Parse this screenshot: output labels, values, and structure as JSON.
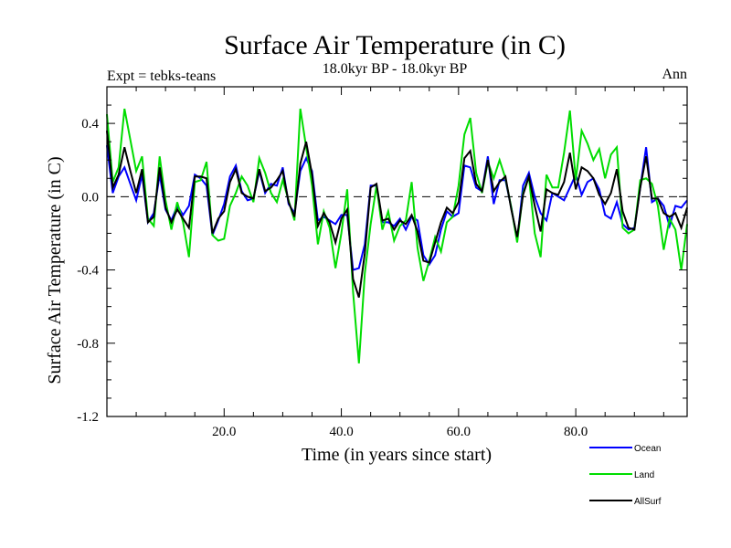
{
  "chart_data": {
    "type": "line",
    "title": "Surface Air Temperature (in C)",
    "subtitle": "18.0kyr BP - 18.0kyr BP",
    "left_note": "Expt = tebks-teans",
    "right_note": "Ann",
    "xlabel": "Time (in years since start)",
    "ylabel": "Surface Air Temperature (in C)",
    "xlim": [
      0,
      99
    ],
    "ylim": [
      -1.2,
      0.6
    ],
    "xticks": [
      20,
      40,
      60,
      80
    ],
    "xtick_labels": [
      "20.0",
      "40.0",
      "60.0",
      "80.0"
    ],
    "yticks": [
      -1.2,
      -0.8,
      -0.4,
      0.0,
      0.4
    ],
    "ytick_labels": [
      "-1.2",
      "-0.8",
      "-0.4",
      "0.0",
      "0.4"
    ],
    "zero_line": 0.0,
    "legend_position": "bottom-right, below plot",
    "series": [
      {
        "name": "Ocean",
        "color": "#0000ff",
        "values": [
          0.28,
          0.02,
          0.11,
          0.16,
          0.07,
          -0.02,
          0.12,
          -0.14,
          -0.09,
          0.12,
          -0.07,
          -0.13,
          -0.05,
          -0.1,
          -0.05,
          0.12,
          0.1,
          0.06,
          -0.21,
          -0.13,
          -0.04,
          0.11,
          0.17,
          0.03,
          -0.02,
          -0.01,
          0.14,
          0.02,
          0.07,
          0.06,
          0.16,
          -0.04,
          -0.09,
          0.14,
          0.21,
          0.14,
          -0.13,
          -0.11,
          -0.13,
          -0.15,
          -0.1,
          -0.1,
          -0.4,
          -0.39,
          -0.26,
          0.06,
          0.06,
          -0.14,
          -0.14,
          -0.16,
          -0.12,
          -0.18,
          -0.11,
          -0.13,
          -0.32,
          -0.37,
          -0.32,
          -0.18,
          -0.08,
          -0.11,
          -0.09,
          0.17,
          0.16,
          0.05,
          0.03,
          0.22,
          -0.04,
          0.09,
          0.09,
          -0.06,
          -0.24,
          0.06,
          0.13,
          0.0,
          -0.09,
          -0.13,
          0.02,
          0.0,
          -0.02,
          0.05,
          0.12,
          0.01,
          0.08,
          0.1,
          0.04,
          -0.1,
          -0.12,
          -0.03,
          -0.15,
          -0.18,
          -0.17,
          0.05,
          0.27,
          -0.03,
          -0.01,
          -0.05,
          -0.16,
          -0.05,
          -0.06,
          -0.02
        ]
      },
      {
        "name": "Land",
        "color": "#00dd00",
        "values": [
          0.45,
          0.08,
          0.16,
          0.48,
          0.31,
          0.14,
          0.22,
          -0.12,
          -0.16,
          0.22,
          -0.02,
          -0.18,
          -0.03,
          -0.14,
          -0.33,
          0.08,
          0.09,
          0.19,
          -0.21,
          -0.24,
          -0.23,
          -0.05,
          0.02,
          0.11,
          0.06,
          -0.03,
          0.21,
          0.13,
          0.02,
          -0.03,
          0.09,
          -0.02,
          -0.13,
          0.48,
          0.27,
          0.06,
          -0.26,
          -0.08,
          -0.17,
          -0.39,
          -0.2,
          0.04,
          -0.52,
          -0.91,
          -0.42,
          -0.15,
          0.06,
          -0.18,
          -0.08,
          -0.24,
          -0.16,
          -0.13,
          0.08,
          -0.28,
          -0.46,
          -0.35,
          -0.22,
          -0.3,
          -0.14,
          -0.11,
          0.06,
          0.34,
          0.43,
          0.13,
          0.02,
          0.19,
          0.1,
          0.2,
          0.1,
          -0.06,
          -0.25,
          0.02,
          0.11,
          -0.2,
          -0.33,
          0.12,
          0.05,
          0.05,
          0.24,
          0.47,
          0.09,
          0.36,
          0.29,
          0.2,
          0.26,
          0.1,
          0.23,
          0.27,
          -0.17,
          -0.2,
          -0.18,
          0.09,
          0.1,
          0.07,
          -0.05,
          -0.29,
          -0.12,
          -0.18,
          -0.4,
          -0.15
        ]
      },
      {
        "name": "AllSurf",
        "color": "#000000",
        "values": [
          0.36,
          0.05,
          0.12,
          0.27,
          0.14,
          0.02,
          0.15,
          -0.14,
          -0.11,
          0.16,
          -0.06,
          -0.14,
          -0.07,
          -0.12,
          -0.17,
          0.11,
          0.11,
          0.1,
          -0.2,
          -0.12,
          -0.08,
          0.08,
          0.15,
          0.02,
          0.0,
          -0.01,
          0.15,
          0.03,
          0.05,
          0.09,
          0.14,
          -0.03,
          -0.11,
          0.18,
          0.3,
          0.12,
          -0.16,
          -0.09,
          -0.14,
          -0.25,
          -0.12,
          -0.07,
          -0.45,
          -0.55,
          -0.31,
          0.05,
          0.07,
          -0.13,
          -0.12,
          -0.18,
          -0.13,
          -0.15,
          -0.1,
          -0.19,
          -0.35,
          -0.36,
          -0.25,
          -0.14,
          -0.06,
          -0.09,
          -0.03,
          0.21,
          0.25,
          0.07,
          0.03,
          0.2,
          0.03,
          0.08,
          0.11,
          -0.07,
          -0.22,
          0.01,
          0.11,
          -0.05,
          -0.19,
          0.04,
          0.02,
          0.01,
          0.08,
          0.24,
          0.04,
          0.16,
          0.14,
          0.1,
          0.01,
          -0.04,
          0.02,
          0.15,
          -0.08,
          -0.17,
          -0.18,
          0.05,
          0.22,
          -0.01,
          -0.01,
          -0.09,
          -0.11,
          -0.09,
          -0.17,
          -0.06
        ]
      }
    ]
  }
}
